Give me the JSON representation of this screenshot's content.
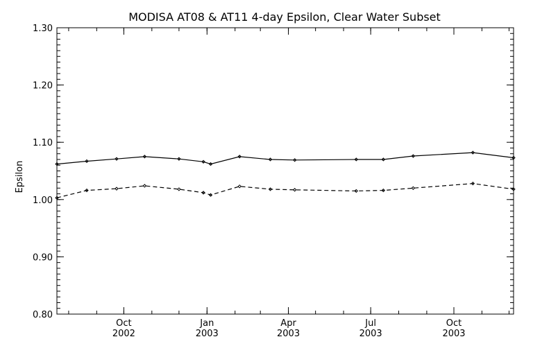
{
  "chart_data": {
    "type": "line",
    "title": "MODISA AT08 & AT11 4-day Epsilon, Clear Water Subset",
    "xlabel": "",
    "ylabel": "Epsilon",
    "x_range": [
      "2002-07-19",
      "2003-12-06"
    ],
    "ylim": [
      0.8,
      1.3
    ],
    "y_ticks": [
      "0.80",
      "0.90",
      "1.00",
      "1.10",
      "1.20",
      "1.30"
    ],
    "x_ticks": [
      {
        "date": "2002-10-01",
        "month": "Oct",
        "year": "2002"
      },
      {
        "date": "2003-01-01",
        "month": "Jan",
        "year": "2003"
      },
      {
        "date": "2003-04-01",
        "month": "Apr",
        "year": "2003"
      },
      {
        "date": "2003-07-01",
        "month": "Jul",
        "year": "2003"
      },
      {
        "date": "2003-10-01",
        "month": "Oct",
        "year": "2003"
      }
    ],
    "grid": false,
    "series": [
      {
        "line_style": "solid",
        "x": [
          "2002-07-19",
          "2002-08-21",
          "2002-09-23",
          "2002-10-24",
          "2002-12-01",
          "2002-12-28",
          "2003-01-05",
          "2003-02-06",
          "2003-03-12",
          "2003-04-08",
          "2003-06-15",
          "2003-07-15",
          "2003-08-17",
          "2003-10-22",
          "2003-12-06"
        ],
        "values": [
          1.062,
          1.067,
          1.071,
          1.075,
          1.071,
          1.066,
          1.062,
          1.075,
          1.07,
          1.069,
          1.07,
          1.07,
          1.076,
          1.082,
          1.073
        ]
      },
      {
        "line_style": "dashed",
        "x": [
          "2002-07-19",
          "2002-08-21",
          "2002-09-23",
          "2002-10-24",
          "2002-12-01",
          "2002-12-28",
          "2003-01-05",
          "2003-02-06",
          "2003-03-12",
          "2003-04-08",
          "2003-06-15",
          "2003-07-15",
          "2003-08-17",
          "2003-10-22",
          "2003-12-06"
        ],
        "values": [
          1.003,
          1.016,
          1.019,
          1.024,
          1.018,
          1.012,
          1.008,
          1.023,
          1.018,
          1.017,
          1.015,
          1.016,
          1.02,
          1.028,
          1.018
        ]
      }
    ]
  }
}
